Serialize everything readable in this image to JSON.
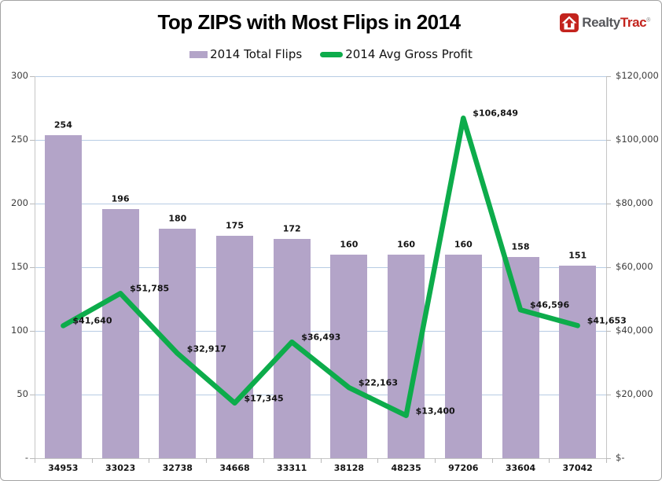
{
  "header": {
    "logo": {
      "brand_dark": "Realty",
      "brand_red": "Trac",
      "reg_mark": "®"
    },
    "logo_colors": {
      "box_red": "#c3231d",
      "text_dark": "#55565a",
      "text_red": "#c3231d"
    }
  },
  "chart_data": {
    "type": "combo-bar-line",
    "title": "Top ZIPS with Most Flips in 2014",
    "categories": [
      "34953",
      "33023",
      "32738",
      "34668",
      "33311",
      "38128",
      "48235",
      "97206",
      "33604",
      "37042"
    ],
    "series": [
      {
        "name": "2014 Total Flips",
        "type": "bar",
        "axis": "left",
        "color": "#b3a4c8",
        "values": [
          254,
          196,
          180,
          175,
          172,
          160,
          160,
          160,
          158,
          151
        ],
        "data_labels": [
          "254",
          "196",
          "180",
          "175",
          "172",
          "160",
          "160",
          "160",
          "158",
          "151"
        ]
      },
      {
        "name": "2014 Avg Gross Profit",
        "type": "line",
        "axis": "right",
        "color": "#0dac4b",
        "values": [
          41640,
          51785,
          32917,
          17345,
          36493,
          22163,
          13400,
          106849,
          46596,
          41653
        ],
        "data_labels": [
          "$41,640",
          "$51,785",
          "$32,917",
          "$17,345",
          "$36,493",
          "$22,163",
          "$13,400",
          "$106,849",
          "$46,596",
          "$41,653"
        ]
      }
    ],
    "left_axis": {
      "min": 0,
      "max": 300,
      "step": 50,
      "tick_labels": [
        "300",
        "250",
        "200",
        "150",
        "100",
        "50",
        "-"
      ]
    },
    "right_axis": {
      "min": 0,
      "max": 120000,
      "step": 20000,
      "tick_labels": [
        "$120,000",
        "$100,000",
        "$80,000",
        "$60,000",
        "$40,000",
        "$20,000",
        "$-"
      ]
    },
    "grid": {
      "show": true,
      "color": "#b7cce4"
    },
    "axis_color": "#c6c6c6",
    "legend_position": "top"
  }
}
